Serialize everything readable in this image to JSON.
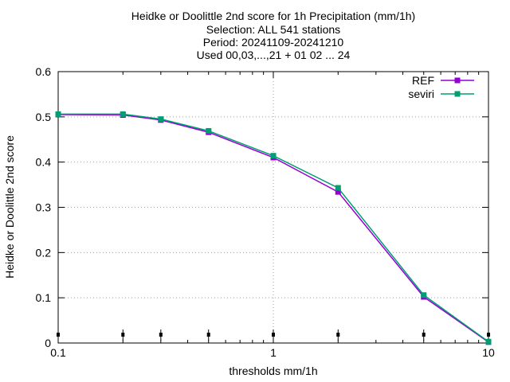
{
  "chart_data": {
    "type": "line",
    "title_lines": [
      "Heidke or Doolittle 2nd score  for 1h Precipitation (mm/1h)",
      "Selection: ALL    541 stations",
      "Period: 20241109-20241210",
      "Used 00,03,...,21 + 01 02 ... 24"
    ],
    "xlabel": "thresholds mm/1h",
    "ylabel": "Heidke or Doolittle 2nd score",
    "x_scale": "log",
    "xlim": [
      0.1,
      10
    ],
    "ylim": [
      0,
      0.6
    ],
    "x_ticks": [
      {
        "value": 0.1,
        "label": "0.1"
      },
      {
        "value": 1,
        "label": "1"
      },
      {
        "value": 10,
        "label": "10"
      }
    ],
    "y_ticks": [
      {
        "value": 0,
        "label": "0"
      },
      {
        "value": 0.1,
        "label": "0.1"
      },
      {
        "value": 0.2,
        "label": "0.2"
      },
      {
        "value": 0.3,
        "label": "0.3"
      },
      {
        "value": 0.4,
        "label": "0.4"
      },
      {
        "value": 0.5,
        "label": "0.5"
      },
      {
        "value": 0.6,
        "label": "0.6"
      }
    ],
    "grid": true,
    "legend_position": "top-right",
    "x": [
      0.1,
      0.2,
      0.3,
      0.5,
      1,
      2,
      5,
      10
    ],
    "series": [
      {
        "name": "REF",
        "color": "#9400d3",
        "values": [
          0.505,
          0.504,
          0.493,
          0.466,
          0.41,
          0.334,
          0.102,
          0.002
        ]
      },
      {
        "name": "seviri",
        "color": "#009e73",
        "values": [
          0.506,
          0.506,
          0.495,
          0.469,
          0.414,
          0.343,
          0.106,
          0.003
        ]
      }
    ],
    "sample_markers_x": [
      0.1,
      0.2,
      0.3,
      0.5,
      1,
      2,
      5,
      10
    ]
  }
}
